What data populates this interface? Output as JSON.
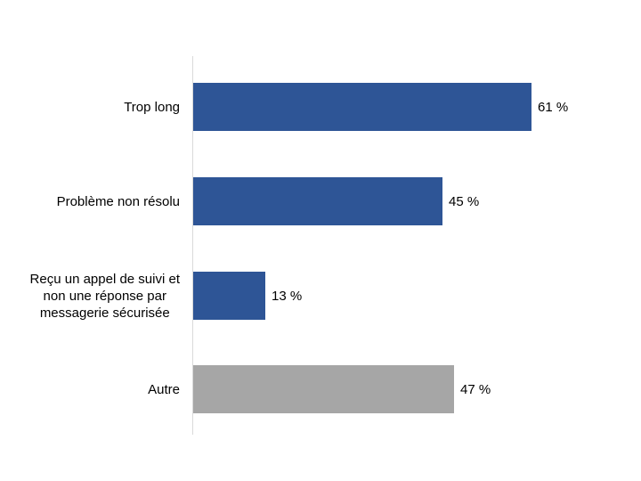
{
  "chart_data": {
    "type": "bar",
    "orientation": "horizontal",
    "title": "",
    "xlabel": "",
    "ylabel": "",
    "x_axis_ticks_visible": false,
    "gridlines": false,
    "legend": false,
    "xlim": [
      0,
      78
    ],
    "categories": [
      "Trop long",
      "Problème non résolu",
      "Reçu un appel de suivi et\nnon une réponse par\nmessagerie sécurisée",
      "Autre"
    ],
    "values": [
      61,
      45,
      13,
      47
    ],
    "value_labels": [
      "61 %",
      "45 %",
      "13 %",
      "47 %"
    ],
    "bar_colors": [
      "#2E5596",
      "#2E5596",
      "#2E5596",
      "#A6A6A6"
    ],
    "axis_line_color": "#D9D9D9",
    "text_color": "#000000",
    "background_color": "#FFFFFF"
  }
}
